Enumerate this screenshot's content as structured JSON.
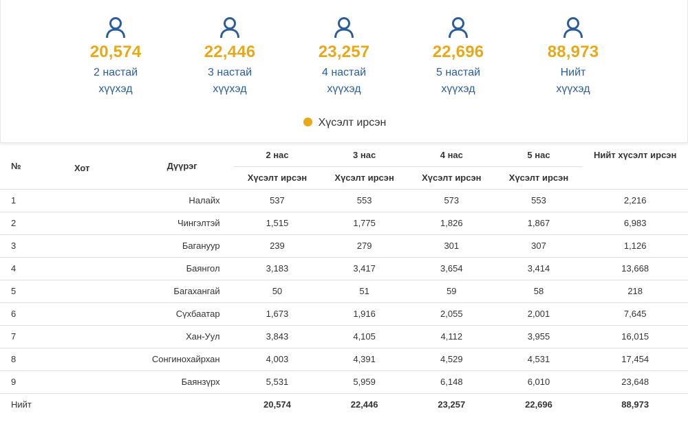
{
  "summary": {
    "items": [
      {
        "value": "20,574",
        "label": "2 настай хүүхэд"
      },
      {
        "value": "22,446",
        "label": "3 настай хүүхэд"
      },
      {
        "value": "23,257",
        "label": "4 настай хүүхэд"
      },
      {
        "value": "22,696",
        "label": "5 настай хүүхэд"
      },
      {
        "value": "88,973",
        "label": "Нийт хүүхэд"
      }
    ],
    "legend": "Хүсэлт ирсэн",
    "colors": {
      "accent": "#e6a919",
      "label": "#2b5d9b"
    }
  },
  "table": {
    "headers": {
      "no": "№",
      "city": "Хот",
      "district": "Дүүрэг",
      "age2": "2 нас",
      "age3": "3 нас",
      "age4": "4 нас",
      "age5": "5 нас",
      "total": "Нийт хүсэлт ирсэн",
      "sub": "Хүсэлт ирсэн"
    },
    "rows": [
      {
        "no": "1",
        "city": "",
        "district": "Налайх",
        "a2": "537",
        "a3": "553",
        "a4": "573",
        "a5": "553",
        "total": "2,216"
      },
      {
        "no": "2",
        "city": "",
        "district": "Чингэлтэй",
        "a2": "1,515",
        "a3": "1,775",
        "a4": "1,826",
        "a5": "1,867",
        "total": "6,983"
      },
      {
        "no": "3",
        "city": "",
        "district": "Багануур",
        "a2": "239",
        "a3": "279",
        "a4": "301",
        "a5": "307",
        "total": "1,126"
      },
      {
        "no": "4",
        "city": "",
        "district": "Баянгол",
        "a2": "3,183",
        "a3": "3,417",
        "a4": "3,654",
        "a5": "3,414",
        "total": "13,668"
      },
      {
        "no": "5",
        "city": "",
        "district": "Багахангай",
        "a2": "50",
        "a3": "51",
        "a4": "59",
        "a5": "58",
        "total": "218"
      },
      {
        "no": "6",
        "city": "",
        "district": "Сүхбаатар",
        "a2": "1,673",
        "a3": "1,916",
        "a4": "2,055",
        "a5": "2,001",
        "total": "7,645"
      },
      {
        "no": "7",
        "city": "",
        "district": "Хан-Уул",
        "a2": "3,843",
        "a3": "4,105",
        "a4": "4,112",
        "a5": "3,955",
        "total": "16,015"
      },
      {
        "no": "8",
        "city": "",
        "district": "Сонгинохайрхан",
        "a2": "4,003",
        "a3": "4,391",
        "a4": "4,529",
        "a5": "4,531",
        "total": "17,454"
      },
      {
        "no": "9",
        "city": "",
        "district": "Баянзүрх",
        "a2": "5,531",
        "a3": "5,959",
        "a4": "6,148",
        "a5": "6,010",
        "total": "23,648"
      }
    ],
    "total": {
      "label": "Нийт",
      "a2": "20,574",
      "a3": "22,446",
      "a4": "23,257",
      "a5": "22,696",
      "total": "88,973"
    }
  }
}
